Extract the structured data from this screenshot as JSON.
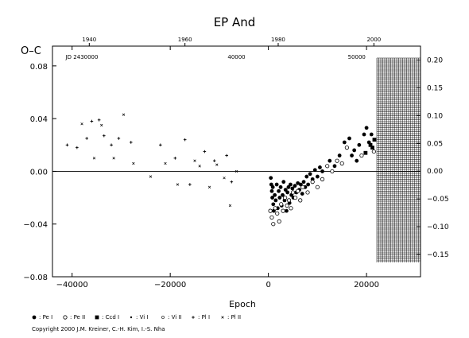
{
  "chart_data": {
    "type": "scatter",
    "title": "EP And",
    "ylabel": "O–C",
    "xlabel": "Epoch",
    "xlim": [
      -44000,
      31000
    ],
    "ylim": [
      -0.08,
      0.095
    ],
    "y2lim": [
      -0.19,
      0.225
    ],
    "x_ticks": [
      -40000,
      -20000,
      0,
      20000
    ],
    "x_tick_labels": [
      "−40000",
      "−20000",
      "0",
      "20000"
    ],
    "y_ticks": [
      -0.08,
      -0.04,
      0.0,
      0.04,
      0.08
    ],
    "y_tick_labels": [
      "−0.08",
      "−0.04",
      "0.00",
      "0.04",
      "0.08"
    ],
    "y2_ticks": [
      -0.15,
      -0.1,
      -0.05,
      0.0,
      0.05,
      0.1,
      0.15,
      0.2
    ],
    "y2_tick_labels": [
      "−0.15",
      "−0.10",
      "−0.05",
      "0.00",
      "0.05",
      "0.10",
      "0.15",
      "0.20"
    ],
    "top_year_ticks": [
      {
        "epoch": -36500,
        "label": "1940"
      },
      {
        "epoch": -17000,
        "label": "1960"
      },
      {
        "epoch": 2000,
        "label": "1980"
      },
      {
        "epoch": 21500,
        "label": "2000"
      }
    ],
    "jd_labels": [
      {
        "epoch": -38000,
        "label": "JD 2430000"
      },
      {
        "epoch": -6500,
        "label": "40000"
      },
      {
        "epoch": 18000,
        "label": "50000"
      }
    ],
    "legend": [
      "Pe I",
      "Pe II",
      "Ccd I",
      "Vi I",
      "Vi II",
      "Pl I",
      "Pl II"
    ],
    "series": [
      {
        "name": "Pe I",
        "marker": "filled-circle",
        "points": [
          [
            500,
            -0.005
          ],
          [
            600,
            -0.01
          ],
          [
            700,
            -0.015
          ],
          [
            800,
            -0.02
          ],
          [
            900,
            -0.012
          ],
          [
            1000,
            -0.025
          ],
          [
            1100,
            -0.03
          ],
          [
            1300,
            -0.018
          ],
          [
            1500,
            -0.022
          ],
          [
            1700,
            -0.01
          ],
          [
            1900,
            -0.028
          ],
          [
            2100,
            -0.015
          ],
          [
            2300,
            -0.02
          ],
          [
            2500,
            -0.012
          ],
          [
            2700,
            -0.026
          ],
          [
            2900,
            -0.018
          ],
          [
            3100,
            -0.008
          ],
          [
            3300,
            -0.022
          ],
          [
            3500,
            -0.014
          ],
          [
            3700,
            -0.03
          ],
          [
            3900,
            -0.016
          ],
          [
            4100,
            -0.012
          ],
          [
            4300,
            -0.024
          ],
          [
            4500,
            -0.01
          ],
          [
            4700,
            -0.018
          ],
          [
            4900,
            -0.013
          ],
          [
            5100,
            -0.02
          ],
          [
            5400,
            -0.011
          ],
          [
            5700,
            -0.016
          ],
          [
            6000,
            -0.009
          ],
          [
            6300,
            -0.014
          ],
          [
            6600,
            -0.01
          ],
          [
            6900,
            -0.017
          ],
          [
            7200,
            -0.008
          ],
          [
            7500,
            -0.012
          ],
          [
            7800,
            -0.004
          ],
          [
            8100,
            -0.01
          ],
          [
            8500,
            -0.002
          ],
          [
            9000,
            -0.006
          ],
          [
            9500,
            0.001
          ],
          [
            10000,
            -0.004
          ],
          [
            10500,
            0.003
          ],
          [
            11000,
            0.0
          ],
          [
            12500,
            0.008
          ],
          [
            13500,
            0.004
          ],
          [
            14500,
            0.012
          ],
          [
            15500,
            0.022
          ],
          [
            16500,
            0.025
          ],
          [
            17500,
            0.016
          ],
          [
            18500,
            0.02
          ],
          [
            19500,
            0.028
          ],
          [
            20000,
            0.033
          ],
          [
            20500,
            0.022
          ],
          [
            21000,
            0.028
          ],
          [
            17000,
            0.012
          ],
          [
            18000,
            0.008
          ]
        ]
      },
      {
        "name": "Pe II",
        "marker": "open-circle",
        "points": [
          [
            400,
            -0.03
          ],
          [
            700,
            -0.035
          ],
          [
            1000,
            -0.04
          ],
          [
            1400,
            -0.028
          ],
          [
            1800,
            -0.032
          ],
          [
            2200,
            -0.038
          ],
          [
            2600,
            -0.025
          ],
          [
            3000,
            -0.03
          ],
          [
            3400,
            -0.02
          ],
          [
            3800,
            -0.026
          ],
          [
            4200,
            -0.022
          ],
          [
            4600,
            -0.028
          ],
          [
            5000,
            -0.016
          ],
          [
            5500,
            -0.02
          ],
          [
            6000,
            -0.015
          ],
          [
            6500,
            -0.022
          ],
          [
            7000,
            -0.012
          ],
          [
            8000,
            -0.016
          ],
          [
            9000,
            -0.008
          ],
          [
            10000,
            -0.012
          ],
          [
            11000,
            -0.006
          ],
          [
            12000,
            0.004
          ],
          [
            13000,
            0.0
          ],
          [
            14000,
            0.008
          ],
          [
            15000,
            0.006
          ],
          [
            16000,
            0.018
          ],
          [
            19000,
            0.012
          ],
          [
            21500,
            0.015
          ]
        ]
      },
      {
        "name": "Ccd I",
        "marker": "filled-square",
        "points": [
          [
            20800,
            0.02
          ],
          [
            21200,
            0.018
          ],
          [
            21600,
            0.024
          ],
          [
            19800,
            0.014
          ]
        ]
      },
      {
        "name": "Pl I",
        "marker": "plus",
        "points": [
          [
            -41000,
            0.02
          ],
          [
            -39000,
            0.018
          ],
          [
            -37000,
            0.025
          ],
          [
            -36000,
            0.038
          ],
          [
            -34500,
            0.039
          ],
          [
            -33500,
            0.027
          ],
          [
            -32000,
            0.02
          ],
          [
            -30500,
            0.025
          ],
          [
            -28000,
            0.022
          ],
          [
            -22000,
            0.02
          ],
          [
            -19000,
            0.01
          ],
          [
            -17000,
            0.024
          ],
          [
            -16000,
            -0.01
          ],
          [
            -13000,
            0.015
          ],
          [
            -11000,
            0.008
          ],
          [
            -8500,
            0.012
          ],
          [
            -7500,
            -0.008
          ]
        ]
      },
      {
        "name": "Pl II",
        "marker": "cross",
        "points": [
          [
            -38000,
            0.036
          ],
          [
            -35500,
            0.01
          ],
          [
            -34000,
            0.035
          ],
          [
            -31500,
            0.01
          ],
          [
            -29500,
            0.043
          ],
          [
            -27500,
            0.006
          ],
          [
            -24000,
            -0.004
          ],
          [
            -21000,
            0.006
          ],
          [
            -18500,
            -0.01
          ],
          [
            -15000,
            0.008
          ],
          [
            -14000,
            0.004
          ],
          [
            -12000,
            -0.012
          ],
          [
            -10500,
            0.005
          ],
          [
            -9000,
            -0.005
          ],
          [
            -7800,
            -0.026
          ],
          [
            -6500,
            0.0
          ]
        ]
      }
    ]
  },
  "copyright": "Copyright 2000 J.M. Kreiner, C.-H. Kim, I.-S. Nha"
}
